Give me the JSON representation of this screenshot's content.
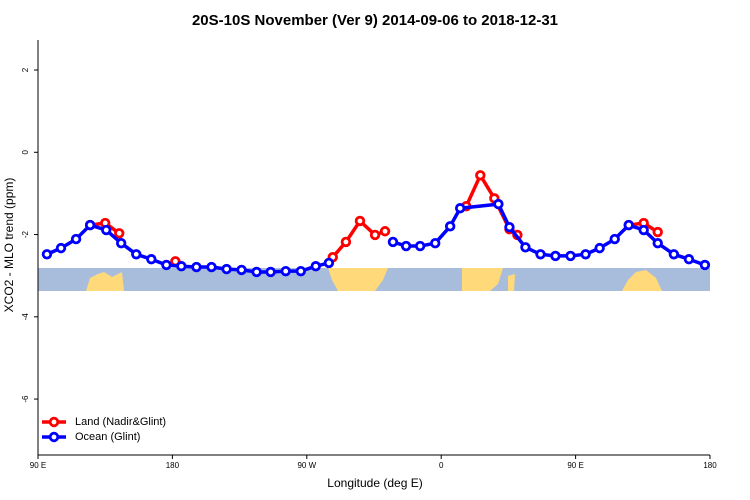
{
  "chart_data": {
    "type": "line",
    "title": "20S-10S November (Ver 9)   2014-09-06 to 2018-12-31",
    "x_label": "Longitude (deg E)",
    "y_label": "XCO2 - MLO trend (ppm)",
    "xlim": [
      90,
      540
    ],
    "xticks": [
      {
        "value": 90,
        "label": "90 E"
      },
      {
        "value": 180,
        "label": "180"
      },
      {
        "value": 270,
        "label": "90 W"
      },
      {
        "value": 360,
        "label": "0"
      },
      {
        "value": 450,
        "label": "90 E"
      },
      {
        "value": 540,
        "label": "180"
      }
    ],
    "ylim": [
      -7.36,
      2.73
    ],
    "yticks": [
      -6,
      -4,
      -2,
      0,
      2
    ],
    "legend": "bottom-left",
    "series": [
      {
        "name": "Land (Nadir&Glint)",
        "color": "#ff0000",
        "x": [
          124.9,
          135,
          144.4,
          null,
          182,
          null,
          287.4,
          296.2,
          305.6,
          315.7,
          322.4,
          null,
          376.8,
          386.2,
          395.6,
          405.7,
          411,
          null,
          485.6,
          495.6,
          505
        ],
        "values": [
          -1.77,
          -1.72,
          -1.97,
          null,
          -2.65,
          null,
          -2.55,
          -2.18,
          -1.67,
          -2.01,
          -1.92,
          null,
          -1.31,
          -0.56,
          -1.12,
          -1.87,
          -2.01,
          null,
          -1.77,
          -1.72,
          -1.94
        ]
      },
      {
        "name": "Ocean (Glint)",
        "color": "#0000ff",
        "x": [
          96,
          105.4,
          115.5,
          124.9,
          135.7,
          145.7,
          155.8,
          165.9,
          176,
          186,
          196.1,
          206.2,
          216.3,
          226.3,
          236.4,
          245.8,
          255.9,
          266,
          276,
          284.8,
          null,
          327.7,
          336.5,
          345.9,
          356,
          366,
          372.7,
          398.3,
          405.7,
          416.4,
          426.5,
          436.5,
          446.6,
          456.7,
          466.1,
          476.2,
          485.6,
          495.6,
          505,
          515.8,
          525.9,
          536.6
        ],
        "values": [
          -2.48,
          -2.33,
          -2.11,
          -1.77,
          -1.89,
          -2.21,
          -2.48,
          -2.6,
          -2.74,
          -2.77,
          -2.79,
          -2.79,
          -2.84,
          -2.86,
          -2.91,
          -2.91,
          -2.89,
          -2.89,
          -2.77,
          -2.69,
          null,
          -2.18,
          -2.28,
          -2.28,
          -2.21,
          -1.8,
          -1.36,
          -1.26,
          -1.82,
          -2.31,
          -2.48,
          -2.52,
          -2.52,
          -2.48,
          -2.33,
          -2.11,
          -1.77,
          -1.89,
          -2.21,
          -2.48,
          -2.6,
          -2.74
        ]
      }
    ]
  }
}
